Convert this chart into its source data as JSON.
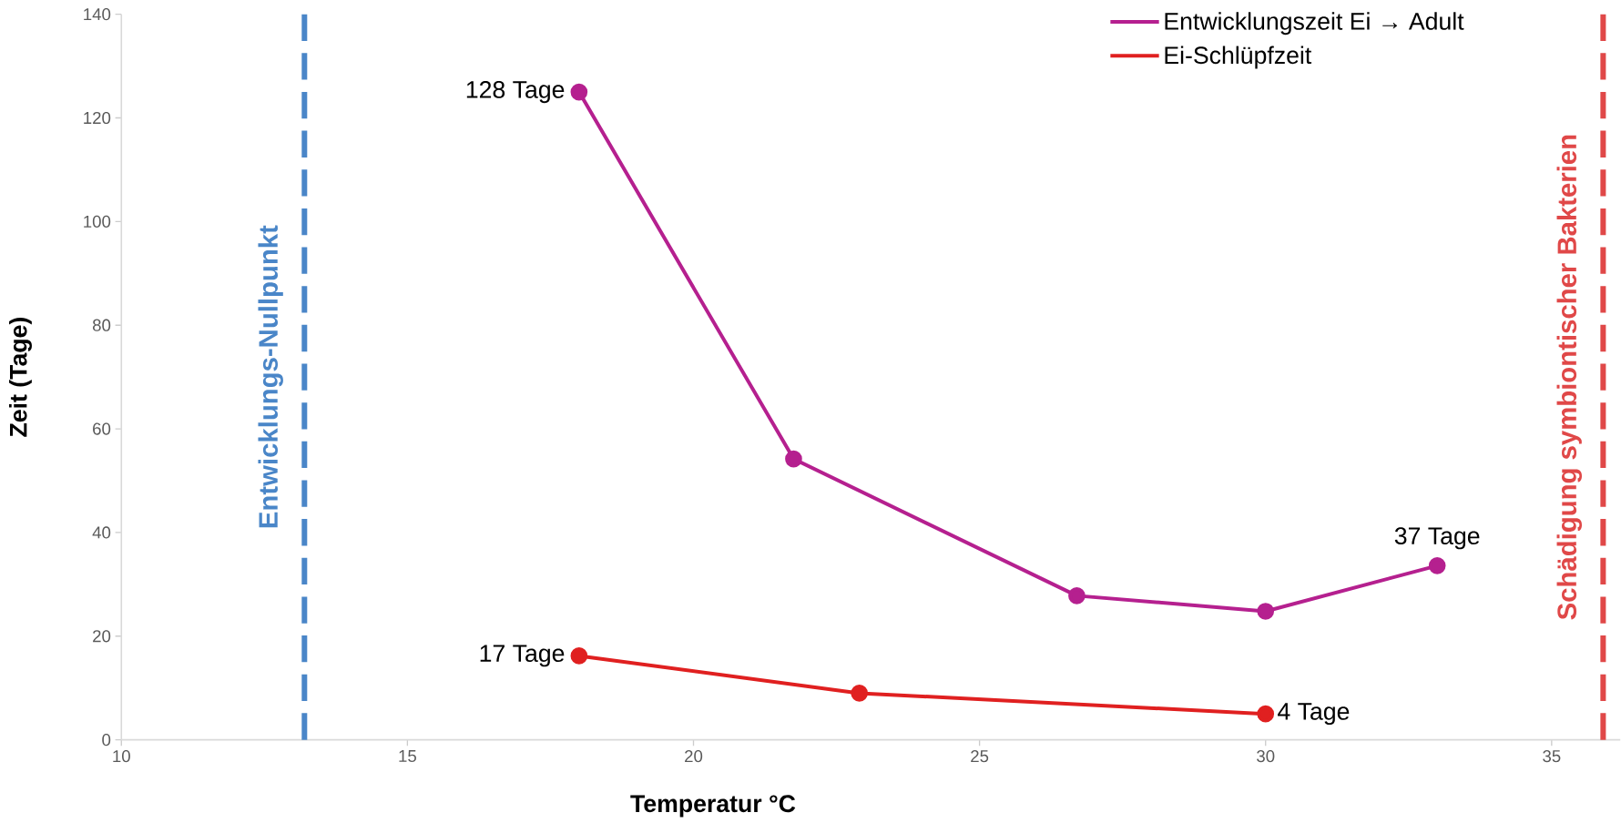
{
  "chart_data": {
    "type": "line",
    "xlabel": "Temperatur °C",
    "ylabel": "Zeit (Tage)",
    "xlim": [
      10,
      36.2
    ],
    "xticks": [
      10,
      15,
      20,
      25,
      30,
      35
    ],
    "ylim": [
      0,
      140
    ],
    "yticks": [
      0,
      20,
      40,
      60,
      80,
      100,
      120,
      140
    ],
    "series": [
      {
        "name": "Entwicklungszeit Ei → Adult",
        "color": "#b5208f",
        "x": [
          18,
          21.75,
          26.7,
          30,
          33
        ],
        "values": [
          125,
          54.2,
          27.8,
          24.8,
          33.6
        ]
      },
      {
        "name": "Ei-Schlüpfzeit",
        "color": "#e02020",
        "x": [
          18,
          22.9,
          30
        ],
        "values": [
          16.2,
          9,
          5
        ]
      }
    ],
    "annotations": [
      {
        "text": "128 Tage",
        "x": 18,
        "y": 125
      },
      {
        "text": "37 Tage",
        "x": 33,
        "y": 33.6
      },
      {
        "text": "17 Tage",
        "x": 18,
        "y": 16.2
      },
      {
        "text": "4 Tage",
        "x": 30,
        "y": 5
      }
    ],
    "ref_lines": [
      {
        "axis": "x",
        "value": 13.2,
        "label": "Entwicklungs-Nullpunkt",
        "color": "#4a86c8",
        "line_style": "dashed"
      },
      {
        "axis": "x",
        "value": 35.9,
        "label": "Schädigung symbiontischer Bakterien",
        "color": "#e04848",
        "line_style": "dashed"
      }
    ],
    "legend": "top right",
    "marker": "circle",
    "line_style": "solid",
    "grid": false
  }
}
